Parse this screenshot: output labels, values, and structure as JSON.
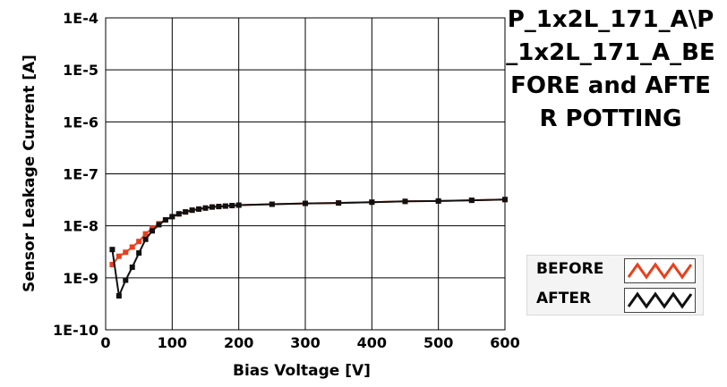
{
  "chart_data": {
    "type": "line",
    "title": "P_1x2L_171_A\\P_1x2L_171_A_BEFORE and AFTER POTTING",
    "xlabel": "Bias Voltage [V]",
    "ylabel": "Sensor Leakage Current [A]",
    "xlim": [
      0,
      600
    ],
    "ylim": [
      1e-10,
      0.0001
    ],
    "yscale": "log",
    "x_ticks": [
      "0",
      "100",
      "200",
      "300",
      "400",
      "500",
      "600"
    ],
    "y_ticks": [
      "1E-10",
      "1E-9",
      "1E-8",
      "1E-7",
      "1E-6",
      "1E-5",
      "1E-4"
    ],
    "grid": true,
    "legend_position": "right",
    "series": [
      {
        "name": "BEFORE",
        "color": "#e8401c",
        "x": [
          10,
          20,
          30,
          40,
          50,
          60,
          70,
          80,
          90,
          100,
          110,
          120,
          130,
          140,
          150,
          160,
          170,
          180,
          190,
          200,
          250,
          300,
          350,
          400,
          450,
          500,
          550,
          600
        ],
        "y": [
          1.8e-09,
          2.6e-09,
          3.1e-09,
          3.9e-09,
          5e-09,
          7e-09,
          9e-09,
          1.1e-08,
          1.3e-08,
          1.5e-08,
          1.7e-08,
          1.85e-08,
          2e-08,
          2.1e-08,
          2.2e-08,
          2.3e-08,
          2.35e-08,
          2.4e-08,
          2.45e-08,
          2.5e-08,
          2.6e-08,
          2.7e-08,
          2.75e-08,
          2.85e-08,
          2.95e-08,
          3e-08,
          3.1e-08,
          3.2e-08
        ]
      },
      {
        "name": "AFTER",
        "color": "#111111",
        "x": [
          10,
          20,
          30,
          40,
          50,
          60,
          70,
          80,
          90,
          100,
          110,
          120,
          130,
          140,
          150,
          160,
          170,
          180,
          190,
          200,
          250,
          300,
          350,
          400,
          450,
          500,
          550,
          600
        ],
        "y": [
          3.5e-09,
          4.5e-10,
          9e-10,
          1.6e-09,
          3e-09,
          5.5e-09,
          8e-09,
          1.05e-08,
          1.3e-08,
          1.5e-08,
          1.7e-08,
          1.85e-08,
          2e-08,
          2.1e-08,
          2.2e-08,
          2.3e-08,
          2.35e-08,
          2.4e-08,
          2.45e-08,
          2.5e-08,
          2.6e-08,
          2.7e-08,
          2.75e-08,
          2.85e-08,
          2.95e-08,
          3e-08,
          3.1e-08,
          3.2e-08
        ]
      }
    ]
  }
}
